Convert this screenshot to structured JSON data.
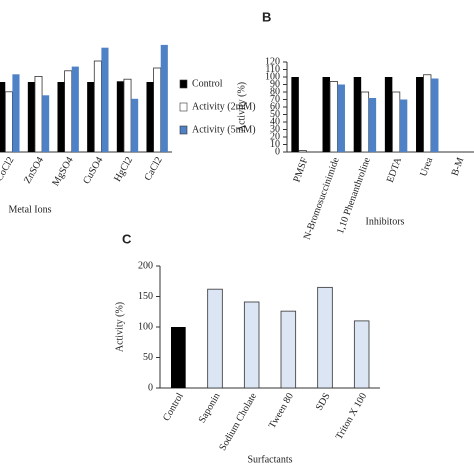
{
  "chart_data": [
    {
      "type": "grouped-bar",
      "xlabel": "Metal Ions",
      "categories": [
        "CoCl2",
        "ZnSO4",
        "MgSO4",
        "CuSO4",
        "HgCl2",
        "CaCl2"
      ],
      "series": [
        {
          "name": "Control",
          "color": "#000000",
          "values": [
            100,
            100,
            100,
            100,
            101,
            100
          ]
        },
        {
          "name": "Activity (2mM)",
          "color": "#ffffff",
          "values": [
            86,
            108,
            116,
            130,
            104,
            120
          ]
        },
        {
          "name": "Activity (5mM)",
          "color": "#4f81c7",
          "values": [
            111,
            81,
            122,
            149,
            76,
            153
          ]
        }
      ],
      "ylim": [
        0,
        160
      ],
      "legend": "right"
    },
    {
      "type": "grouped-bar",
      "title": "B",
      "ylabel": "Activity  (%)",
      "xlabel": "Inhibitors",
      "categories": [
        "PMSF",
        "N-Bromosuccinimide",
        "1,10 Phenanthroline",
        "EDTA",
        "Urea",
        "B-M"
      ],
      "series": [
        {
          "color": "#000000",
          "values": [
            100,
            100,
            100,
            100,
            100,
            null
          ]
        },
        {
          "color": "#ffffff",
          "values": [
            2,
            94,
            80,
            80,
            103,
            null
          ]
        },
        {
          "color": "#4f81c7",
          "values": [
            0,
            90,
            72,
            70,
            98,
            null
          ]
        }
      ],
      "ylim": [
        0,
        120
      ],
      "yticks": [
        0,
        10,
        20,
        30,
        40,
        50,
        60,
        70,
        80,
        90,
        100,
        110,
        120
      ]
    },
    {
      "type": "bar",
      "title": "C",
      "ylabel": "Activity  (%)",
      "xlabel": "Surfactants",
      "categories": [
        "Control",
        "Saponin",
        "Sodium Cholate",
        "Tween 80",
        "SDS",
        "Triton X 100"
      ],
      "values": [
        100,
        162,
        141,
        126,
        165,
        110
      ],
      "colors": [
        "#000000",
        "#dbe5f3",
        "#dbe5f3",
        "#dbe5f3",
        "#dbe5f3",
        "#dbe5f3"
      ],
      "ylim": [
        0,
        200
      ],
      "yticks": [
        0,
        50,
        100,
        150,
        200
      ]
    }
  ]
}
